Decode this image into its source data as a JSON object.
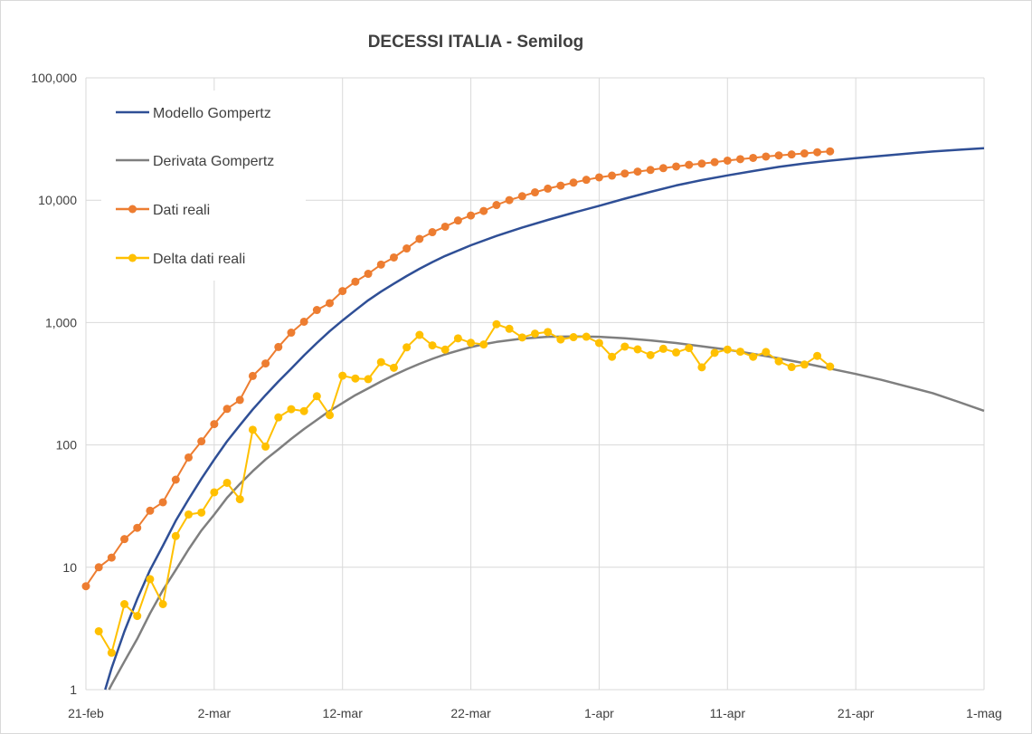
{
  "chart_data": {
    "type": "line",
    "title": "DECESSI ITALIA - Semilog",
    "xlabel": "",
    "ylabel": "",
    "y_scale": "log",
    "ylim": [
      1,
      100000
    ],
    "xlim": [
      "21-feb",
      "1-mag"
    ],
    "x_tick_labels": [
      "21-feb",
      "2-mar",
      "12-mar",
      "22-mar",
      "1-apr",
      "11-apr",
      "21-apr",
      "1-mag"
    ],
    "y_tick_labels": [
      "1",
      "10",
      "100",
      "1,000",
      "10,000",
      "100,000"
    ],
    "grid": true,
    "legend_position": "top-left",
    "series": [
      {
        "name": "Modello Gompertz",
        "color": "#2f4f96",
        "marker": "none",
        "x_days": [
          1.5,
          2,
          3,
          4,
          5,
          6,
          7,
          8,
          9,
          10,
          11,
          12,
          13,
          14,
          15,
          16,
          17,
          18,
          19,
          20,
          21,
          22,
          23,
          24,
          25,
          26,
          27,
          28,
          30,
          32,
          34,
          36,
          38,
          40,
          42,
          44,
          46,
          48,
          50,
          52,
          54,
          56,
          58,
          60,
          62,
          64,
          66,
          68,
          70
        ],
        "values": [
          1,
          1.5,
          3,
          5.5,
          9.5,
          15,
          24,
          36,
          53,
          76,
          107,
          145,
          195,
          255,
          330,
          420,
          540,
          680,
          850,
          1040,
          1260,
          1520,
          1790,
          2080,
          2400,
          2750,
          3120,
          3500,
          4280,
          5100,
          5980,
          6900,
          7900,
          9000,
          10300,
          11700,
          13200,
          14600,
          15950,
          17300,
          18700,
          19950,
          21050,
          22050,
          23000,
          24050,
          25000,
          25800,
          26600
        ]
      },
      {
        "name": "Derivata Gompertz",
        "color": "#7f7f7f",
        "marker": "none",
        "x_days": [
          1.8,
          2,
          3,
          4,
          5,
          6,
          7,
          8,
          9,
          10,
          11,
          12,
          13,
          14,
          15,
          16,
          17,
          18,
          19,
          20,
          21,
          22,
          23,
          24,
          25,
          26,
          27,
          28,
          29,
          30,
          31,
          32,
          34,
          36,
          38,
          40,
          42,
          44,
          46,
          48,
          50,
          52,
          54,
          56,
          58,
          60,
          62,
          64,
          66,
          68,
          70
        ],
        "values": [
          1,
          1.1,
          1.7,
          2.6,
          4.2,
          6.5,
          9.5,
          14,
          20,
          27,
          37,
          48,
          61,
          76,
          92,
          112,
          135,
          160,
          190,
          220,
          255,
          290,
          330,
          372,
          415,
          460,
          505,
          550,
          590,
          630,
          665,
          695,
          740,
          765,
          770,
          765,
          745,
          715,
          680,
          640,
          600,
          555,
          510,
          465,
          420,
          380,
          340,
          300,
          265,
          225,
          190
        ]
      },
      {
        "name": "Dati reali",
        "color": "#ed7d31",
        "marker": "circle",
        "x_days": [
          0,
          1,
          2,
          3,
          4,
          5,
          6,
          7,
          8,
          9,
          10,
          11,
          12,
          13,
          14,
          15,
          16,
          17,
          18,
          19,
          20,
          21,
          22,
          23,
          24,
          25,
          26,
          27,
          28,
          29,
          30,
          31,
          32,
          33,
          34,
          35,
          36,
          37,
          38,
          39,
          40,
          41,
          42,
          43,
          44,
          45,
          46,
          47,
          48,
          49,
          50,
          51,
          52,
          53,
          54,
          55,
          56,
          57,
          58
        ],
        "values": [
          7,
          10,
          12,
          17,
          21,
          29,
          34,
          52,
          79,
          107,
          148,
          197,
          233,
          366,
          463,
          631,
          827,
          1016,
          1266,
          1441,
          1809,
          2158,
          2503,
          2978,
          3405,
          4032,
          4825,
          5476,
          6077,
          6820,
          7503,
          8165,
          9134,
          10023,
          10779,
          11591,
          12428,
          13155,
          13915,
          14681,
          15362,
          15887,
          16523,
          17127,
          17669,
          18279,
          18849,
          19468,
          19899,
          20465,
          21067,
          21645,
          22170,
          22745,
          23227,
          23660,
          24114,
          24648,
          25085
        ]
      },
      {
        "name": "Delta dati reali",
        "color": "#ffc000",
        "marker": "circle",
        "x_days": [
          1,
          2,
          3,
          4,
          5,
          6,
          7,
          8,
          9,
          10,
          11,
          12,
          13,
          14,
          15,
          16,
          17,
          18,
          19,
          20,
          21,
          22,
          23,
          24,
          25,
          26,
          27,
          28,
          29,
          30,
          31,
          32,
          33,
          34,
          35,
          36,
          37,
          38,
          39,
          40,
          41,
          42,
          43,
          44,
          45,
          46,
          47,
          48,
          49,
          50,
          51,
          52,
          53,
          54,
          55,
          56,
          57,
          58
        ],
        "values": [
          3,
          2,
          5,
          4,
          8,
          5,
          18,
          27,
          28,
          41,
          49,
          36,
          133,
          97,
          168,
          196,
          189,
          250,
          175,
          368,
          349,
          345,
          475,
          427,
          627,
          793,
          651,
          601,
          743,
          683,
          662,
          969,
          889,
          756,
          812,
          837,
          727,
          760,
          766,
          681,
          525,
          636,
          604,
          542,
          610,
          570,
          619,
          431,
          566,
          602,
          578,
          525,
          575,
          482,
          433,
          454,
          534,
          437
        ]
      }
    ]
  }
}
